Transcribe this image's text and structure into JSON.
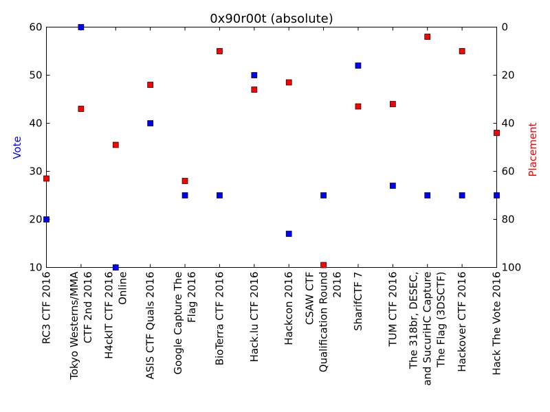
{
  "chart_data": {
    "type": "scatter",
    "title": "0x90r00t (absolute)",
    "categories": [
      [
        "RC3 CTF 2016"
      ],
      [
        "Tokyo Westerns/MMA",
        "CTF 2nd 2016"
      ],
      [
        "H4ckIT CTF 2016",
        "Online"
      ],
      [
        "ASIS CTF Quals 2016"
      ],
      [
        "Google Capture The",
        "Flag 2016"
      ],
      [
        "BioTerra CTF 2016"
      ],
      [
        "Hack.lu CTF 2016"
      ],
      [
        "Hackcon 2016"
      ],
      [
        "CSAW CTF",
        "Qualification Round",
        "2016"
      ],
      [
        "SharifCTF 7"
      ],
      [
        "TUM CTF 2016"
      ],
      [
        "The 318br, DESEC,",
        "and SucuriHC Capture",
        "The Flag (3DSCTF)"
      ],
      [
        "Hackover CTF 2016"
      ],
      [
        "Hack The Vote 2016"
      ]
    ],
    "series": [
      {
        "name": "Vote",
        "axis": "left",
        "color": "#0000ff",
        "values": [
          20,
          60,
          10,
          40,
          25,
          25,
          50,
          17,
          25,
          52,
          27,
          25,
          25,
          25
        ]
      },
      {
        "name": "Placement",
        "axis": "right",
        "color": "#ff0000",
        "values": [
          63,
          34,
          49,
          24,
          64,
          10,
          26,
          23,
          99,
          33,
          32,
          4,
          10,
          44
        ]
      }
    ],
    "ylabel_left": "Vote",
    "ylabel_right": "Placement",
    "ylim_left": [
      10,
      60
    ],
    "ylim_right_inverted": [
      0,
      100
    ],
    "yticks_left": [
      "10",
      "20",
      "30",
      "40",
      "50",
      "60"
    ],
    "yticks_right": [
      "0",
      "20",
      "40",
      "60",
      "80",
      "100"
    ],
    "grid": false,
    "left_label_color": "#0000ff",
    "right_label_color": "#ff0000"
  }
}
